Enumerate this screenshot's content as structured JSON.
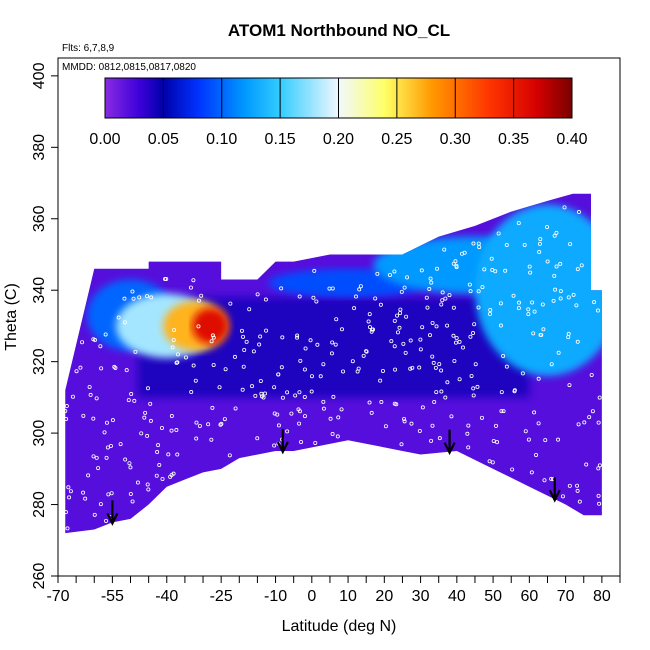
{
  "chart_data": {
    "type": "heatmap",
    "title": "ATOM1 Northbound NO_CL",
    "notes": [
      "Flts: 6,7,8,9",
      "MMDD: 0812,0815,0817,0820"
    ],
    "xlabel": "Latitude (deg N)",
    "ylabel": "Theta (C)",
    "xlim": [
      -70,
      85
    ],
    "ylim": [
      260,
      405
    ],
    "x_ticks": [
      -70,
      -55,
      -40,
      -25,
      -10,
      0,
      10,
      20,
      30,
      40,
      50,
      60,
      70,
      80
    ],
    "x_minor_ticks": [
      -65,
      -60,
      -50,
      -45,
      -35,
      -30,
      -20,
      -15,
      -5,
      5,
      15,
      25,
      35,
      45,
      55,
      65,
      75,
      85
    ],
    "y_ticks": [
      260,
      280,
      300,
      320,
      340,
      360,
      380,
      400
    ],
    "colorbar": {
      "min": 0.0,
      "max": 0.4,
      "ticks": [
        "0.00",
        "0.05",
        "0.10",
        "0.15",
        "0.20",
        "0.25",
        "0.30",
        "0.35",
        "0.40"
      ],
      "stops": [
        {
          "v": 0.0,
          "color": "#8a2be2"
        },
        {
          "v": 0.03,
          "color": "#3b00d8"
        },
        {
          "v": 0.05,
          "color": "#0000aa"
        },
        {
          "v": 0.08,
          "color": "#0033ff"
        },
        {
          "v": 0.12,
          "color": "#0099ff"
        },
        {
          "v": 0.15,
          "color": "#33ccff"
        },
        {
          "v": 0.2,
          "color": "#f0f8ff"
        },
        {
          "v": 0.24,
          "color": "#ffff66"
        },
        {
          "v": 0.28,
          "color": "#ff9900"
        },
        {
          "v": 0.33,
          "color": "#ff3300"
        },
        {
          "v": 0.37,
          "color": "#d40000"
        },
        {
          "v": 0.4,
          "color": "#7a0000"
        }
      ]
    },
    "coverage": {
      "top": [
        [
          -68,
          312
        ],
        [
          -60,
          346
        ],
        [
          -45,
          346
        ],
        [
          -45,
          348
        ],
        [
          -25,
          348
        ],
        [
          -25,
          343
        ],
        [
          -15,
          343
        ],
        [
          -10,
          348
        ],
        [
          -5,
          348
        ],
        [
          5,
          350
        ],
        [
          25,
          350
        ],
        [
          35,
          355
        ],
        [
          45,
          358
        ],
        [
          55,
          362
        ],
        [
          65,
          365
        ],
        [
          72,
          367
        ],
        [
          77,
          367
        ],
        [
          77,
          340
        ],
        [
          80,
          340
        ],
        [
          80,
          309
        ]
      ],
      "bottom": [
        [
          -68,
          272
        ],
        [
          -60,
          273
        ],
        [
          -55,
          275
        ],
        [
          -50,
          276
        ],
        [
          -45,
          280
        ],
        [
          -40,
          285
        ],
        [
          -35,
          287
        ],
        [
          -30,
          289
        ],
        [
          -25,
          290
        ],
        [
          -20,
          293
        ],
        [
          -10,
          295
        ],
        [
          -5,
          295
        ],
        [
          10,
          298
        ],
        [
          20,
          296
        ],
        [
          25,
          295
        ],
        [
          30,
          294
        ],
        [
          40,
          295
        ],
        [
          50,
          290
        ],
        [
          60,
          285
        ],
        [
          70,
          280
        ],
        [
          75,
          277
        ],
        [
          80,
          277
        ]
      ]
    },
    "hotspots": [
      {
        "lat": -28,
        "theta": 330,
        "rx": 5,
        "ry": 5,
        "value": 0.36
      },
      {
        "lat": -32,
        "theta": 330,
        "rx": 9,
        "ry": 7,
        "value": 0.27
      },
      {
        "lat": -40,
        "theta": 330,
        "rx": 14,
        "ry": 9,
        "value": 0.18
      },
      {
        "lat": -50,
        "theta": 333,
        "rx": 12,
        "ry": 10,
        "value": 0.1
      },
      {
        "lat": 65,
        "theta": 340,
        "rx": 20,
        "ry": 24,
        "value": 0.13
      },
      {
        "lat": 45,
        "theta": 347,
        "rx": 28,
        "ry": 8,
        "value": 0.12
      },
      {
        "lat": 10,
        "theta": 342,
        "rx": 22,
        "ry": 4,
        "value": 0.09
      }
    ],
    "arrows_lat": [
      -55,
      -8,
      38,
      67
    ],
    "legend": "none",
    "grid": false
  }
}
